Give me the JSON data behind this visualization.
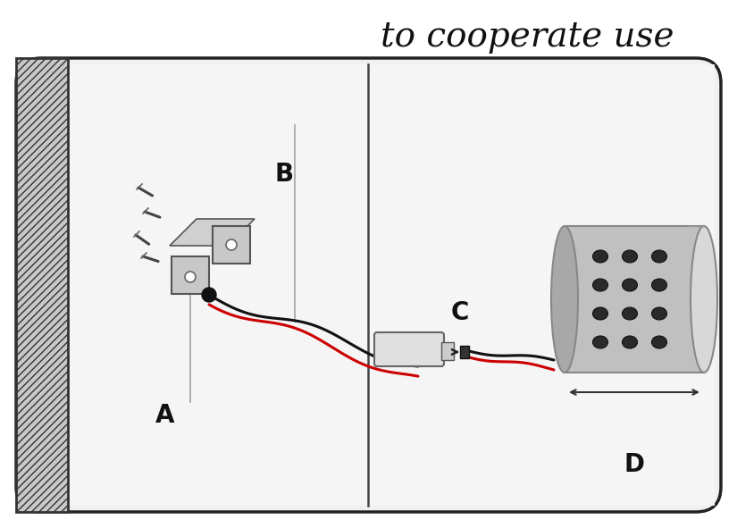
{
  "title": "to cooperate use",
  "title_fontsize": 28,
  "title_style": "italic",
  "title_font": "serif",
  "label_A": "A",
  "label_B": "B",
  "label_C": "C",
  "label_D": "D",
  "label_fontsize": 20,
  "label_fontweight": "bold",
  "bg_color": "#ffffff",
  "border_color": "#222222"
}
